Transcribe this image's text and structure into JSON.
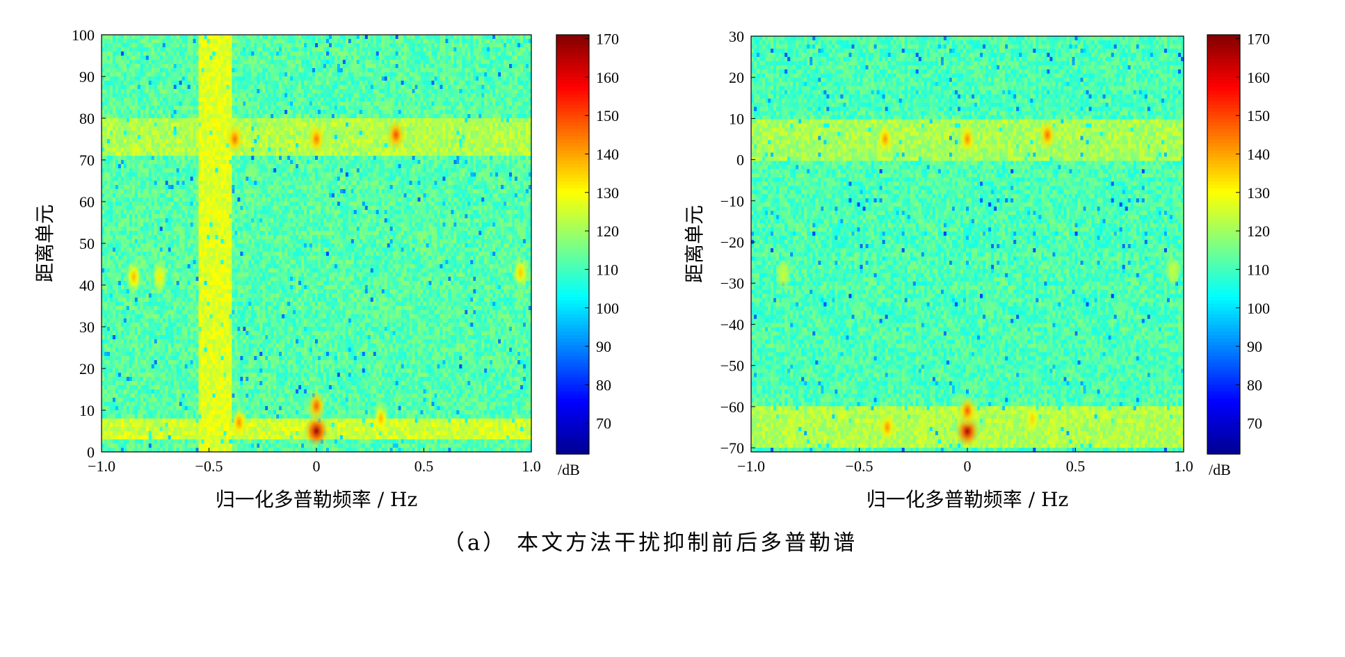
{
  "caption": "（a） 本文方法干扰抑制前后多普勒谱",
  "colormap": [
    "#00008f",
    "#0000ff",
    "#0080ff",
    "#00ffff",
    "#80ff80",
    "#ffff00",
    "#ff8000",
    "#ff0000",
    "#800000"
  ],
  "chart_data": [
    {
      "type": "heatmap",
      "title": "",
      "xlabel": "归一化多普勒频率 / Hz",
      "ylabel": "距离单元",
      "xlim": [
        -1.0,
        1.0
      ],
      "ylim": [
        0,
        100
      ],
      "x_ticks": [
        "−1.0",
        "−0.5",
        "0",
        "0.5",
        "1.0"
      ],
      "x_tick_values": [
        -1.0,
        -0.5,
        0,
        0.5,
        1.0
      ],
      "y_ticks": [
        "0",
        "10",
        "20",
        "30",
        "40",
        "50",
        "60",
        "70",
        "80",
        "90",
        "100"
      ],
      "y_tick_values": [
        0,
        10,
        20,
        30,
        40,
        50,
        60,
        70,
        80,
        90,
        100
      ],
      "colorbar": {
        "unit": "/dB",
        "range": [
          62,
          171
        ],
        "ticks": [
          "70",
          "80",
          "90",
          "100",
          "110",
          "120",
          "130",
          "140",
          "150",
          "160",
          "170"
        ],
        "tick_values": [
          70,
          80,
          90,
          100,
          110,
          120,
          130,
          140,
          150,
          160,
          170
        ]
      },
      "background_db": 112,
      "features": [
        {
          "kind": "band-h",
          "y_range": [
            71,
            80
          ],
          "level_db": 122
        },
        {
          "kind": "band-h",
          "y_range": [
            3,
            8
          ],
          "level_db": 125
        },
        {
          "kind": "band-v",
          "x_range": [
            -0.55,
            -0.4
          ],
          "level_db": 127
        },
        {
          "kind": "blob",
          "x": -0.38,
          "y": 75,
          "level_db": 146
        },
        {
          "kind": "blob",
          "x": 0.37,
          "y": 76,
          "level_db": 150
        },
        {
          "kind": "blob",
          "x": 0.0,
          "y": 75,
          "level_db": 145
        },
        {
          "kind": "blob",
          "x": -0.36,
          "y": 7,
          "level_db": 142
        },
        {
          "kind": "blob",
          "x": 0.3,
          "y": 8,
          "level_db": 138
        },
        {
          "kind": "blob",
          "x": 0.0,
          "y": 5,
          "level_db": 168
        },
        {
          "kind": "blob",
          "x": 0.0,
          "y": 11,
          "level_db": 148
        },
        {
          "kind": "blob",
          "x": -0.85,
          "y": 42,
          "level_db": 138
        },
        {
          "kind": "blob",
          "x": -0.73,
          "y": 42,
          "level_db": 132
        },
        {
          "kind": "blob",
          "x": 0.95,
          "y": 43,
          "level_db": 136
        }
      ]
    },
    {
      "type": "heatmap",
      "title": "",
      "xlabel": "归一化多普勒频率 / Hz",
      "ylabel": "距离单元",
      "xlim": [
        -1.0,
        1.0
      ],
      "ylim": [
        -71,
        30
      ],
      "x_ticks": [
        "−1.0",
        "−0.5",
        "0",
        "0.5",
        "1.0"
      ],
      "x_tick_values": [
        -1.0,
        -0.5,
        0,
        0.5,
        1.0
      ],
      "y_ticks": [
        "−70",
        "−60",
        "−50",
        "−40",
        "−30",
        "−20",
        "−10",
        "0",
        "10",
        "20",
        "30"
      ],
      "y_tick_values": [
        -70,
        -60,
        -50,
        -40,
        -30,
        -20,
        -10,
        0,
        10,
        20,
        30
      ],
      "colorbar": {
        "unit": "/dB",
        "range": [
          62,
          171
        ],
        "ticks": [
          "70",
          "80",
          "90",
          "100",
          "110",
          "120",
          "130",
          "140",
          "150",
          "160",
          "170"
        ],
        "tick_values": [
          70,
          80,
          90,
          100,
          110,
          120,
          130,
          140,
          150,
          160,
          170
        ]
      },
      "background_db": 111,
      "features": [
        {
          "kind": "band-h",
          "y_range": [
            0,
            10
          ],
          "level_db": 121
        },
        {
          "kind": "band-h",
          "y_range": [
            -70,
            -60
          ],
          "level_db": 122
        },
        {
          "kind": "blob",
          "x": -0.38,
          "y": 5,
          "level_db": 142
        },
        {
          "kind": "blob",
          "x": 0.37,
          "y": 6,
          "level_db": 146
        },
        {
          "kind": "blob",
          "x": 0.0,
          "y": 5,
          "level_db": 143
        },
        {
          "kind": "blob",
          "x": -0.37,
          "y": -65,
          "level_db": 142
        },
        {
          "kind": "blob",
          "x": 0.3,
          "y": -63,
          "level_db": 135
        },
        {
          "kind": "blob",
          "x": 0.0,
          "y": -66,
          "level_db": 166
        },
        {
          "kind": "blob",
          "x": 0.0,
          "y": -61,
          "level_db": 148
        },
        {
          "kind": "blob",
          "x": -0.85,
          "y": -28,
          "level_db": 124
        },
        {
          "kind": "blob",
          "x": 0.95,
          "y": -27,
          "level_db": 124
        }
      ]
    }
  ]
}
